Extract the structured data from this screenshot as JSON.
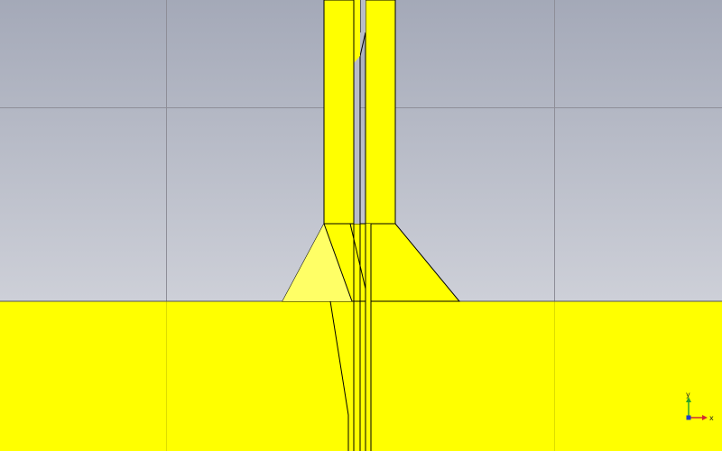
{
  "viewport": {
    "background_top": "#a4a9b8",
    "background_bottom": "#e2e3e8",
    "grid_color": "#8e8e98",
    "grid_visible": true
  },
  "model": {
    "conductor_color": "#ffff00",
    "highlight_color": "#ffff66",
    "edge_color": "#000000",
    "parts": [
      "ground-plane",
      "transition-taper",
      "feed-line-left",
      "feed-line-right"
    ]
  },
  "axes": {
    "y_label": "y",
    "x_label": "x",
    "y_color": "#2aa52a",
    "x_color": "#d22d2d",
    "origin_color": "#1e3cc8"
  }
}
